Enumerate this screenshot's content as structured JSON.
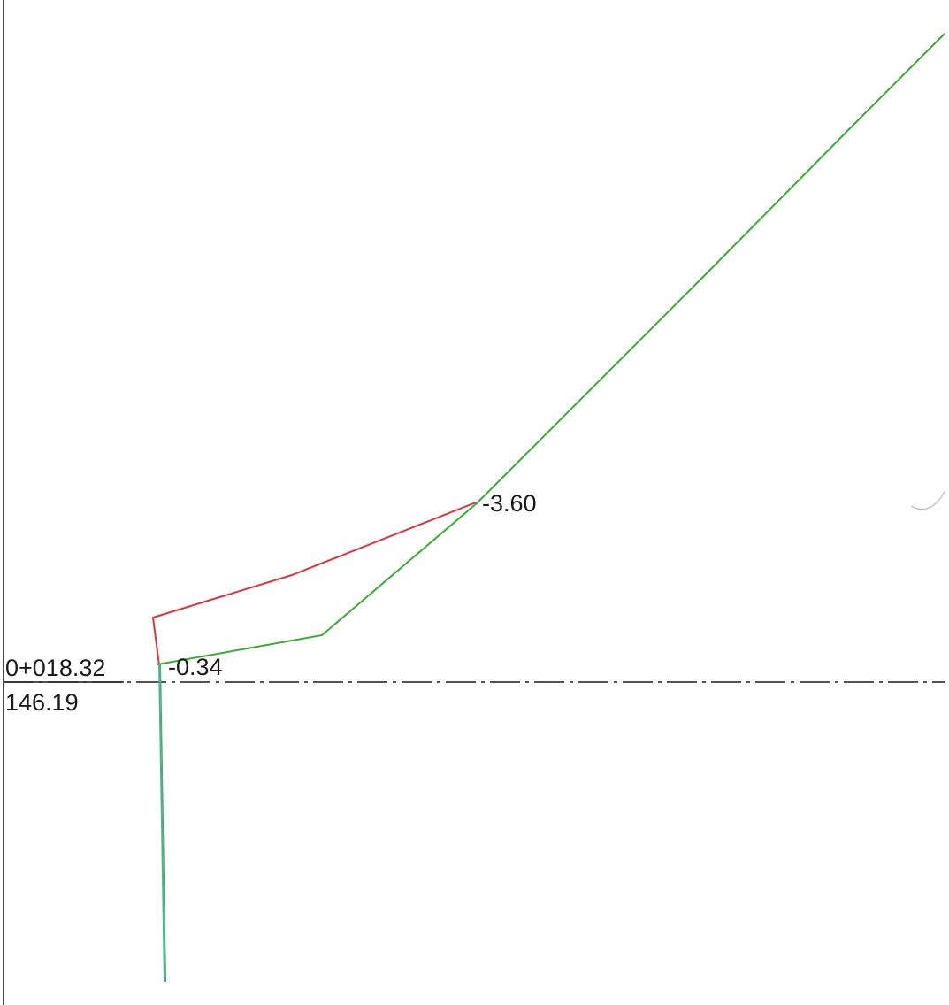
{
  "station": {
    "chainage": "0+018.32",
    "elevation": "146.19"
  },
  "labels": {
    "left_value": "-0.34",
    "right_value": "-3.60"
  },
  "colors": {
    "ink": "#1a1a1a",
    "existing_profile": "#d9363e",
    "design_profile": "#3aaa35",
    "post_line": "#4bb0a8"
  }
}
